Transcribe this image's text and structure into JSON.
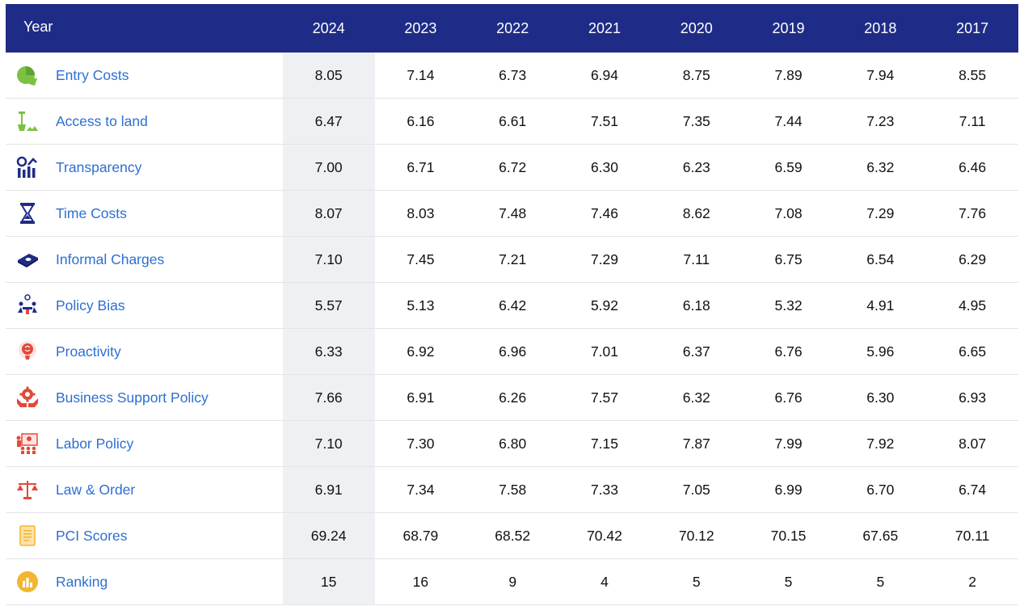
{
  "table": {
    "header_label": "Year",
    "years": [
      "2024",
      "2023",
      "2022",
      "2021",
      "2020",
      "2019",
      "2018",
      "2017"
    ],
    "rows": [
      {
        "label": "Entry Costs",
        "icon": "pie-chart-icon",
        "values": [
          "8.05",
          "7.14",
          "6.73",
          "6.94",
          "8.75",
          "7.89",
          "7.94",
          "8.55"
        ]
      },
      {
        "label": "Access to land",
        "icon": "shovel-land-icon",
        "values": [
          "6.47",
          "6.16",
          "6.61",
          "7.51",
          "7.35",
          "7.44",
          "7.23",
          "7.11"
        ]
      },
      {
        "label": "Transparency",
        "icon": "growth-chart-icon",
        "values": [
          "7.00",
          "6.71",
          "6.72",
          "6.30",
          "6.23",
          "6.59",
          "6.32",
          "6.46"
        ]
      },
      {
        "label": "Time Costs",
        "icon": "hourglass-icon",
        "values": [
          "8.07",
          "8.03",
          "7.48",
          "7.46",
          "8.62",
          "7.08",
          "7.29",
          "7.76"
        ]
      },
      {
        "label": "Informal Charges",
        "icon": "money-icon",
        "values": [
          "7.10",
          "7.45",
          "7.21",
          "7.29",
          "7.11",
          "6.75",
          "6.54",
          "6.29"
        ]
      },
      {
        "label": "Policy Bias",
        "icon": "meeting-icon",
        "values": [
          "5.57",
          "5.13",
          "6.42",
          "5.92",
          "6.18",
          "5.32",
          "4.91",
          "4.95"
        ]
      },
      {
        "label": "Proactivity",
        "icon": "brain-idea-icon",
        "values": [
          "6.33",
          "6.92",
          "6.96",
          "7.01",
          "6.37",
          "6.76",
          "5.96",
          "6.65"
        ]
      },
      {
        "label": "Business Support Policy",
        "icon": "gear-hands-icon",
        "values": [
          "7.66",
          "6.91",
          "6.26",
          "7.57",
          "6.32",
          "6.76",
          "6.30",
          "6.93"
        ]
      },
      {
        "label": "Labor Policy",
        "icon": "workers-icon",
        "values": [
          "7.10",
          "7.30",
          "6.80",
          "7.15",
          "7.87",
          "7.99",
          "7.92",
          "8.07"
        ]
      },
      {
        "label": "Law & Order",
        "icon": "scales-icon",
        "values": [
          "6.91",
          "7.34",
          "7.58",
          "7.33",
          "7.05",
          "6.99",
          "6.70",
          "6.74"
        ]
      },
      {
        "label": "PCI Scores",
        "icon": "score-sheet-icon",
        "values": [
          "69.24",
          "68.79",
          "68.52",
          "70.42",
          "70.12",
          "70.15",
          "67.65",
          "70.11"
        ]
      },
      {
        "label": "Ranking",
        "icon": "ranking-badge-icon",
        "values": [
          "15",
          "16",
          "9",
          "4",
          "5",
          "5",
          "5",
          "2"
        ]
      }
    ]
  },
  "colors": {
    "header_bg": "#1f2c87",
    "label_text": "#2d6fd1",
    "highlight_column": "#eef0f4",
    "green_icon": "#7cc242",
    "navy_icon": "#1f2c87",
    "red_icon": "#e04a3a",
    "yellow_icon": "#f2b632"
  }
}
